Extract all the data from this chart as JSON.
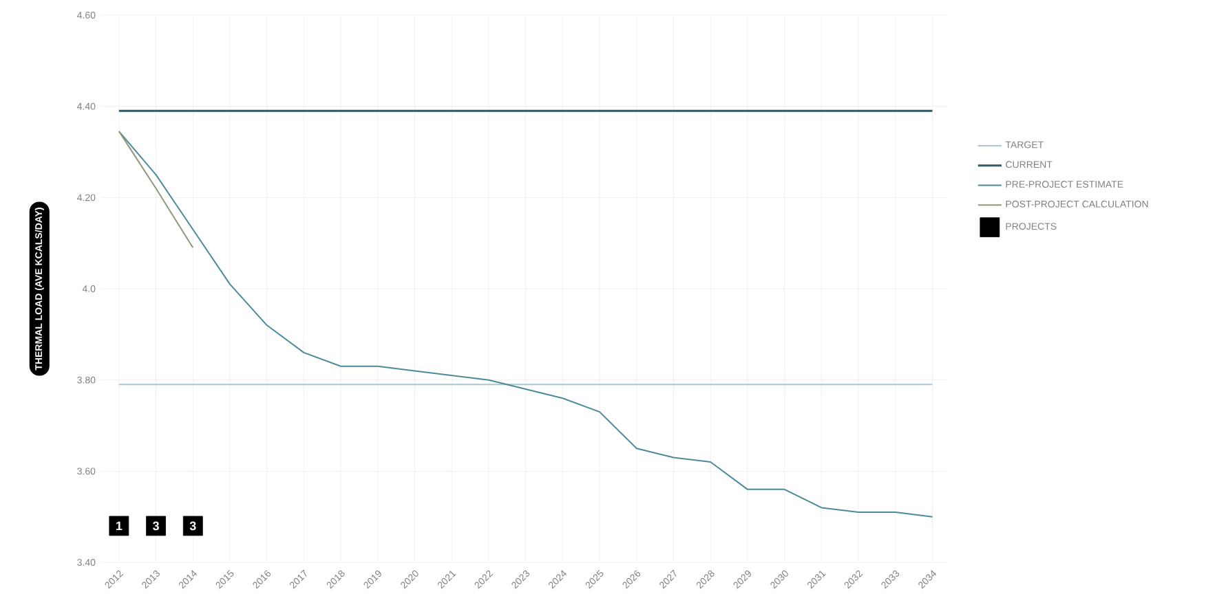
{
  "chart_data": {
    "type": "line",
    "ylabel": "THERMAL LOAD (AVE KCALS/DAY)",
    "xlim": [
      2011.5,
      2034.4
    ],
    "xticks": [
      2012,
      2013,
      2014,
      2015,
      2016,
      2017,
      2018,
      2019,
      2020,
      2021,
      2022,
      2023,
      2024,
      2025,
      2026,
      2027,
      2028,
      2029,
      2030,
      2031,
      2032,
      2033,
      2034
    ],
    "ylim": [
      3.4,
      4.6
    ],
    "yticks": [
      {
        "value": 3.4,
        "label": "3.40"
      },
      {
        "value": 3.6,
        "label": "3.60"
      },
      {
        "value": 3.8,
        "label": "3.80"
      },
      {
        "value": 4,
        "label": "4.0"
      },
      {
        "value": 4.2,
        "label": "4.20"
      },
      {
        "value": 4.4,
        "label": "4.40"
      },
      {
        "value": 4.6,
        "label": "4.60"
      }
    ],
    "grid": true,
    "legend": "right",
    "line_style": "solid",
    "series": [
      {
        "name": "TARGET",
        "color": "#a8c8d0",
        "x": [
          2012,
          2034
        ],
        "values": [
          3.79,
          3.79
        ]
      },
      {
        "name": "CURRENT",
        "color": "#2f5a66",
        "x": [
          2012,
          2034
        ],
        "values": [
          4.39,
          4.39
        ]
      },
      {
        "name": "PRE-PROJECT ESTIMATE",
        "color": "#4a8a9a",
        "x": [
          2012,
          2013,
          2014,
          2015,
          2016,
          2017,
          2018,
          2019,
          2020,
          2021,
          2022,
          2023,
          2024,
          2025,
          2026,
          2027,
          2028,
          2029,
          2030,
          2031,
          2032,
          2033,
          2034
        ],
        "values": [
          4.345,
          4.25,
          4.13,
          4.01,
          3.92,
          3.86,
          3.83,
          3.83,
          3.82,
          3.81,
          3.8,
          3.78,
          3.76,
          3.73,
          3.65,
          3.63,
          3.62,
          3.56,
          3.56,
          3.52,
          3.51,
          3.51,
          3.5
        ]
      },
      {
        "name": "POST-PROJECT CALCULATION",
        "color": "#8a9a7a",
        "x": [
          2012,
          2013,
          2014
        ],
        "values": [
          4.345,
          4.22,
          4.09
        ]
      },
      {
        "name": "PROJECTS",
        "type": "scatter",
        "marker": "square",
        "color": "#000000",
        "x": [
          2012,
          2013,
          2014
        ],
        "values": [
          3.48,
          3.48,
          3.48
        ]
      }
    ],
    "annotations": [
      {
        "text": "1",
        "x": 2012,
        "y": 3.48
      },
      {
        "text": "3",
        "x": 2013,
        "y": 3.48
      },
      {
        "text": "3",
        "x": 2014,
        "y": 3.48
      }
    ]
  }
}
